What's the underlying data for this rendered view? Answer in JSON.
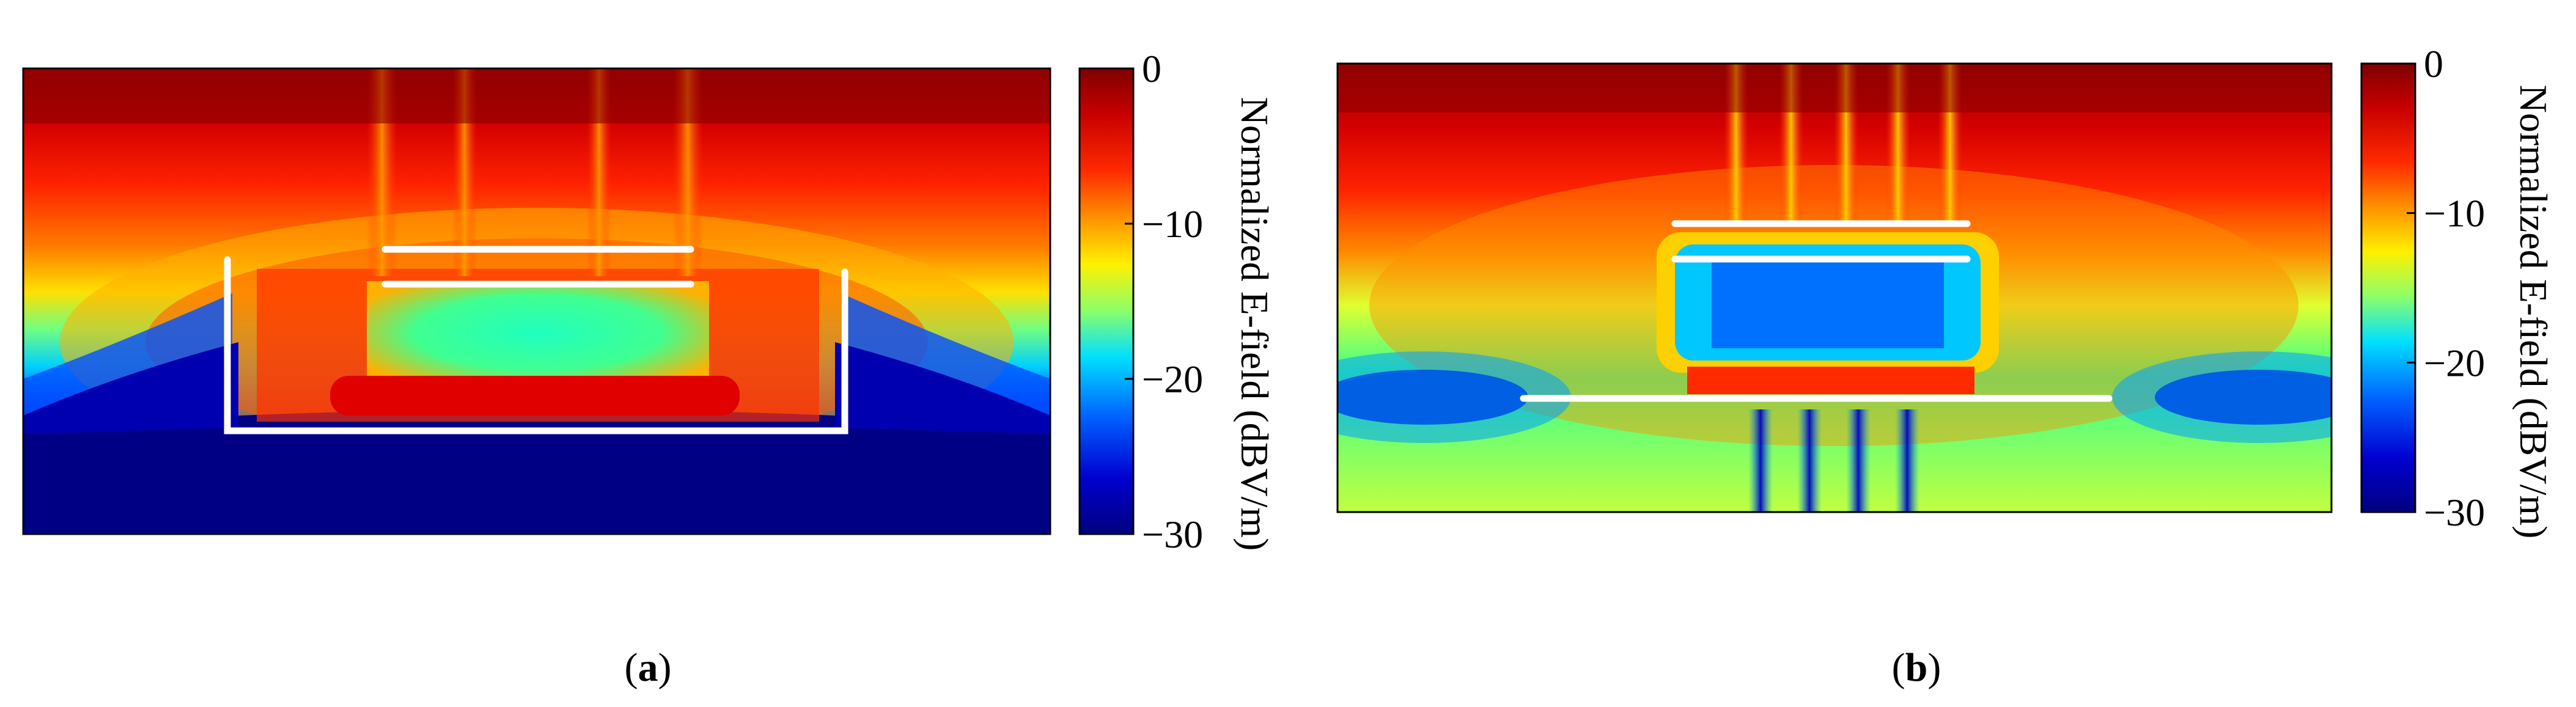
{
  "figure": {
    "panels": [
      {
        "id": "a",
        "caption_letter": "a"
      },
      {
        "id": "b",
        "caption_letter": "b"
      }
    ]
  },
  "chart_data": [
    {
      "type": "heatmap",
      "panel": "a",
      "title": "",
      "colorbar": {
        "label": "Normalized E-field (dBV/m)",
        "min": -30,
        "max": 0,
        "ticks": [
          0,
          -10,
          -20,
          -30
        ],
        "tick_labels": [
          "0",
          "−10",
          "−20",
          "−30"
        ],
        "colormap": "jet"
      },
      "structures": [
        "two horizontal director plates",
        "U-shaped reflector cup"
      ],
      "field_description": "high field (0 dB) above the antenna, low field (-30 dB) below the reflector"
    },
    {
      "type": "heatmap",
      "panel": "b",
      "title": "",
      "colorbar": {
        "label": "Normalized E-field (dBV/m)",
        "min": -30,
        "max": 0,
        "ticks": [
          0,
          -10,
          -20,
          -30
        ],
        "tick_labels": [
          "0",
          "−10",
          "−20",
          "−30"
        ],
        "colormap": "jet"
      },
      "structures": [
        "two short horizontal director plates",
        "long horizontal ground plate"
      ],
      "field_description": "high field above the antenna with narrow vertical beams, blue nulls beside the ground plate"
    }
  ],
  "colors": {
    "jet_0": "#7f0000",
    "jet_neg5": "#ff1a00",
    "jet_neg10": "#ffb000",
    "jet_neg15": "#a0ff56",
    "jet_neg20": "#00c8ff",
    "jet_neg25": "#0040ff",
    "jet_neg30": "#00007f",
    "structure": "#ffffff"
  }
}
